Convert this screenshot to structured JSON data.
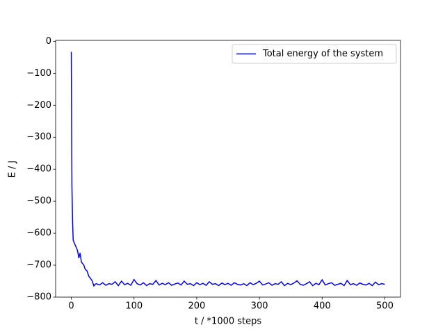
{
  "chart_data": {
    "type": "line",
    "xlabel": "t / *1000 steps",
    "ylabel": "E / J",
    "x": [
      0,
      1,
      2,
      3,
      5,
      8,
      10,
      12,
      14,
      16,
      18,
      20,
      22,
      25,
      28,
      30,
      33,
      36,
      38,
      40,
      45,
      50,
      55,
      60,
      65,
      70,
      75,
      80,
      85,
      90,
      95,
      100,
      105,
      110,
      115,
      120,
      125,
      130,
      135,
      140,
      145,
      150,
      155,
      160,
      165,
      170,
      175,
      180,
      185,
      190,
      195,
      200,
      205,
      210,
      215,
      220,
      225,
      230,
      235,
      240,
      245,
      250,
      255,
      260,
      265,
      270,
      275,
      280,
      285,
      290,
      295,
      300,
      305,
      310,
      315,
      320,
      325,
      330,
      335,
      340,
      345,
      350,
      355,
      360,
      365,
      370,
      375,
      380,
      385,
      390,
      395,
      400,
      405,
      410,
      415,
      420,
      425,
      430,
      435,
      440,
      445,
      450,
      455,
      460,
      465,
      470,
      475,
      480,
      485,
      490,
      495,
      500
    ],
    "series": [
      {
        "name": "Total energy of the system",
        "color": "#0000ff",
        "values": [
          -33,
          -450,
          -560,
          -622,
          -632,
          -645,
          -655,
          -678,
          -662,
          -690,
          -695,
          -700,
          -712,
          -718,
          -735,
          -740,
          -748,
          -765,
          -760,
          -758,
          -762,
          -755,
          -763,
          -758,
          -760,
          -752,
          -764,
          -750,
          -761,
          -757,
          -763,
          -745,
          -758,
          -762,
          -755,
          -764,
          -758,
          -760,
          -748,
          -762,
          -757,
          -761,
          -755,
          -763,
          -759,
          -756,
          -762,
          -750,
          -760,
          -758,
          -764,
          -755,
          -761,
          -757,
          -763,
          -752,
          -760,
          -758,
          -764,
          -756,
          -761,
          -757,
          -763,
          -755,
          -760,
          -762,
          -758,
          -764,
          -755,
          -761,
          -757,
          -750,
          -762,
          -759,
          -755,
          -763,
          -758,
          -760,
          -752,
          -764,
          -757,
          -761,
          -756,
          -749,
          -760,
          -763,
          -758,
          -752,
          -764,
          -757,
          -761,
          -746,
          -762,
          -758,
          -755,
          -763,
          -760,
          -757,
          -764,
          -748,
          -761,
          -758,
          -763,
          -756,
          -760,
          -762,
          -757,
          -764,
          -753,
          -761,
          -758,
          -760
        ]
      }
    ],
    "xlim": [
      -25,
      525
    ],
    "ylim": [
      -800,
      3
    ],
    "xticks": [
      0,
      100,
      200,
      300,
      400,
      500
    ],
    "yticks": [
      0,
      {
        "value": -100,
        "label": "−100"
      },
      {
        "value": -200,
        "label": "−200"
      },
      {
        "value": -300,
        "label": "−300"
      },
      {
        "value": -400,
        "label": "−400"
      },
      {
        "value": -500,
        "label": "−500"
      },
      {
        "value": -600,
        "label": "−600"
      },
      {
        "value": -700,
        "label": "−700"
      },
      {
        "value": -800,
        "label": "−800"
      }
    ],
    "legend": "upper right"
  }
}
